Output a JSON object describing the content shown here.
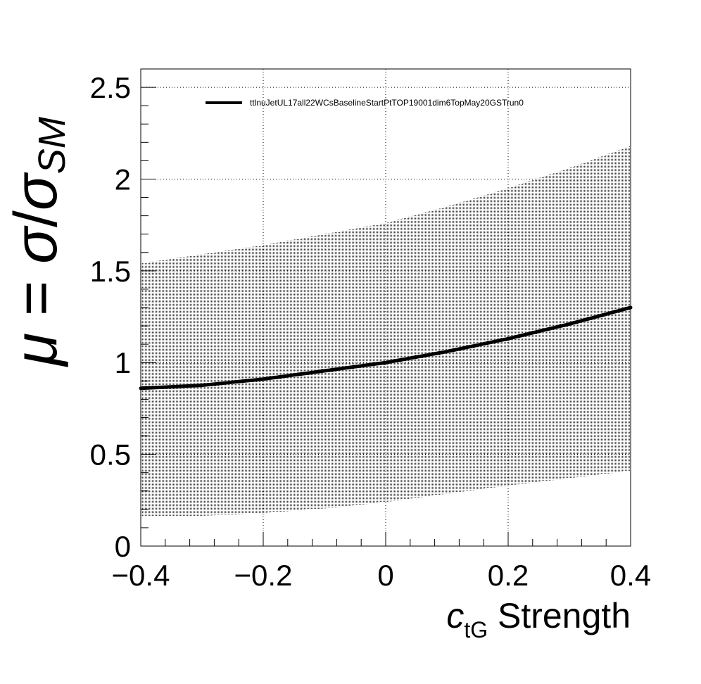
{
  "chart_data": {
    "type": "line",
    "title": "",
    "xlabel": {
      "symbol": "c",
      "subscript": "tG",
      "suffix": " Strength"
    },
    "ylabel": {
      "mu": "μ",
      "equals": " = ",
      "sigma": "σ",
      "slash": "/",
      "sigma2": "σ",
      "subscript": "SM"
    },
    "xlim": [
      -0.4,
      0.4
    ],
    "ylim": [
      0,
      2.6
    ],
    "xticks": [
      "−0.4",
      "−0.2",
      "0",
      "0.2",
      "0.4"
    ],
    "xtick_values": [
      -0.4,
      -0.2,
      0,
      0.2,
      0.4
    ],
    "yticks": [
      "0",
      "0.5",
      "1",
      "1.5",
      "2",
      "2.5"
    ],
    "ytick_values": [
      0,
      0.5,
      1,
      1.5,
      2,
      2.5
    ],
    "grid": true,
    "legend_position": "top",
    "series": [
      {
        "name": "ttlnuJetUL17all22WCsBaselineStartPtTOP19001dim6TopMay20GSTrun0",
        "color": "#000000",
        "x": [
          -0.4,
          -0.3,
          -0.2,
          -0.1,
          0,
          0.1,
          0.2,
          0.3,
          0.4
        ],
        "y": [
          0.86,
          0.876,
          0.91,
          0.955,
          1.0,
          1.06,
          1.13,
          1.21,
          1.3
        ]
      }
    ],
    "band": {
      "color": "#000000",
      "x": [
        -0.4,
        -0.3,
        -0.2,
        -0.1,
        0,
        0.1,
        0.2,
        0.3,
        0.4
      ],
      "upper": [
        1.54,
        1.59,
        1.64,
        1.7,
        1.76,
        1.85,
        1.95,
        2.06,
        2.18
      ],
      "lower": [
        0.16,
        0.165,
        0.18,
        0.205,
        0.24,
        0.285,
        0.33,
        0.37,
        0.41
      ]
    }
  }
}
